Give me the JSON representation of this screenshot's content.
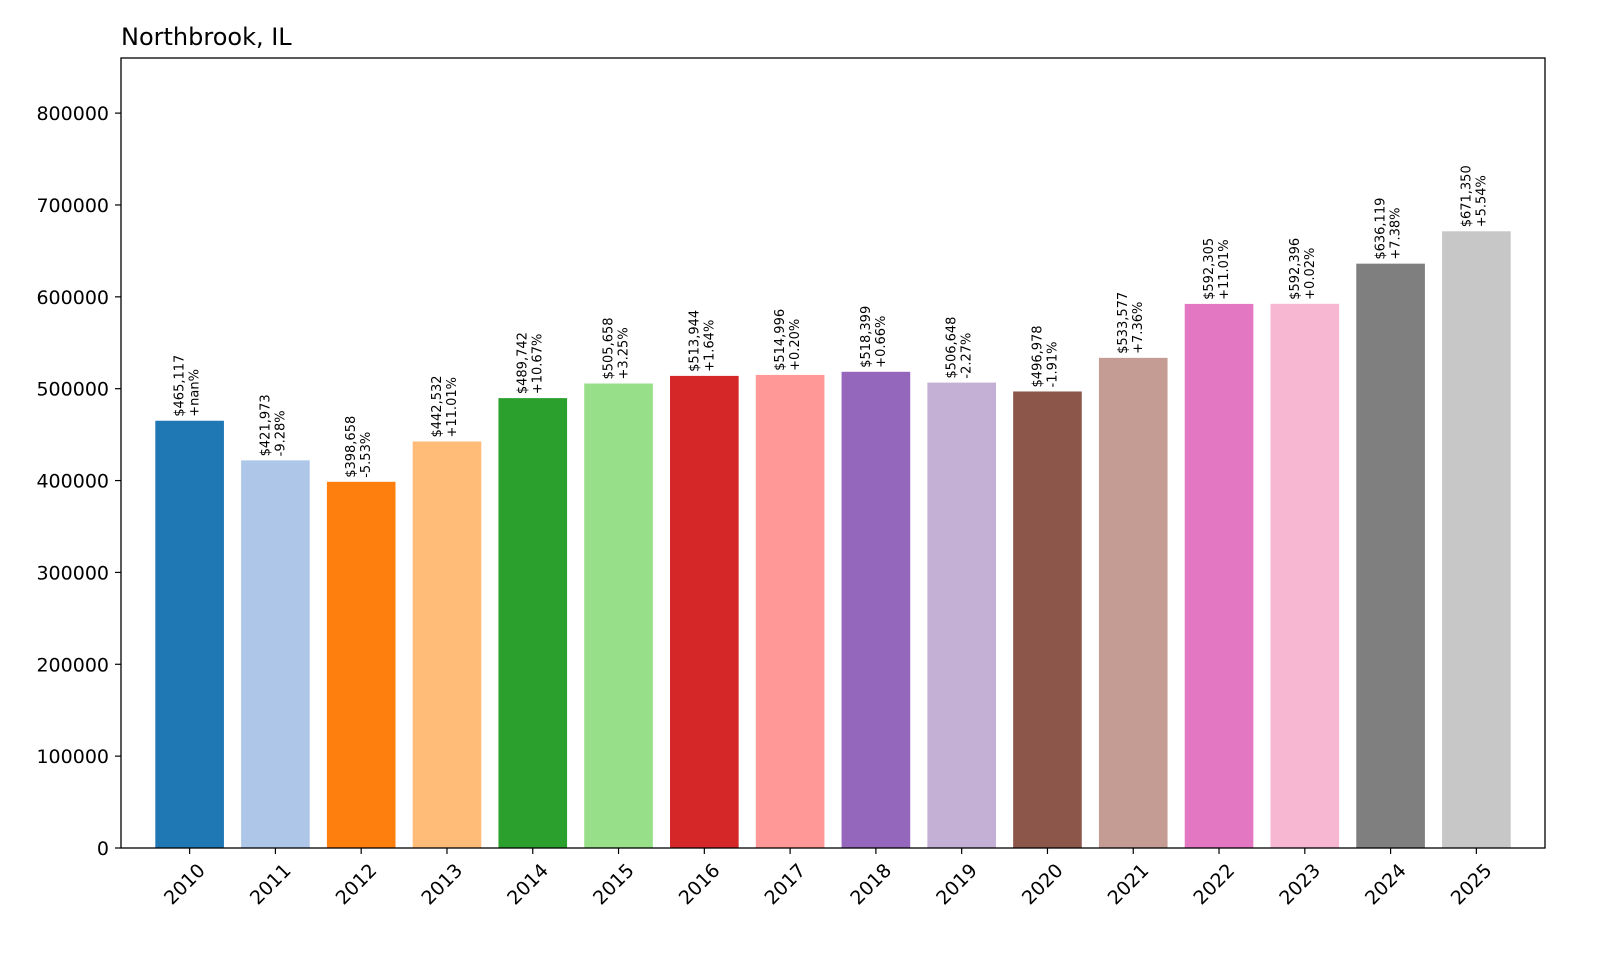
{
  "chart_data": {
    "type": "bar",
    "title": "Northbrook, IL",
    "xlabel": "",
    "ylabel": "",
    "ylim": [
      0,
      860000
    ],
    "yticks": [
      0,
      100000,
      200000,
      300000,
      400000,
      500000,
      600000,
      700000,
      800000
    ],
    "ytick_labels": [
      "0",
      "100000",
      "200000",
      "300000",
      "400000",
      "500000",
      "600000",
      "700000",
      "800000"
    ],
    "categories": [
      "2010",
      "2011",
      "2012",
      "2013",
      "2014",
      "2015",
      "2016",
      "2017",
      "2018",
      "2019",
      "2020",
      "2021",
      "2022",
      "2023",
      "2024",
      "2025"
    ],
    "values": [
      465117,
      421973,
      398658,
      442532,
      489742,
      505658,
      513944,
      514996,
      518399,
      506648,
      496978,
      533577,
      592305,
      592396,
      636119,
      671350
    ],
    "value_labels": [
      "$465,117",
      "$421,973",
      "$398,658",
      "$442,532",
      "$489,742",
      "$505,658",
      "$513,944",
      "$514,996",
      "$518,399",
      "$506,648",
      "$496,978",
      "$533,577",
      "$592,305",
      "$592,396",
      "$636,119",
      "$671,350"
    ],
    "change_labels": [
      "+nan%",
      "-9.28%",
      "-5.53%",
      "+11.01%",
      "+10.67%",
      "+3.25%",
      "+1.64%",
      "+0.20%",
      "+0.66%",
      "-2.27%",
      "-1.91%",
      "+7.36%",
      "+11.01%",
      "+0.02%",
      "+7.38%",
      "+5.54%"
    ],
    "colors": [
      "#1f77b4",
      "#aec7e8",
      "#ff7f0e",
      "#ffbb78",
      "#2ca02c",
      "#98df8a",
      "#d62728",
      "#ff9896",
      "#9467bd",
      "#c5b0d5",
      "#8c564b",
      "#c49c94",
      "#e377c2",
      "#f7b6d2",
      "#7f7f7f",
      "#c7c7c7"
    ],
    "grid": false,
    "legend": "none"
  }
}
